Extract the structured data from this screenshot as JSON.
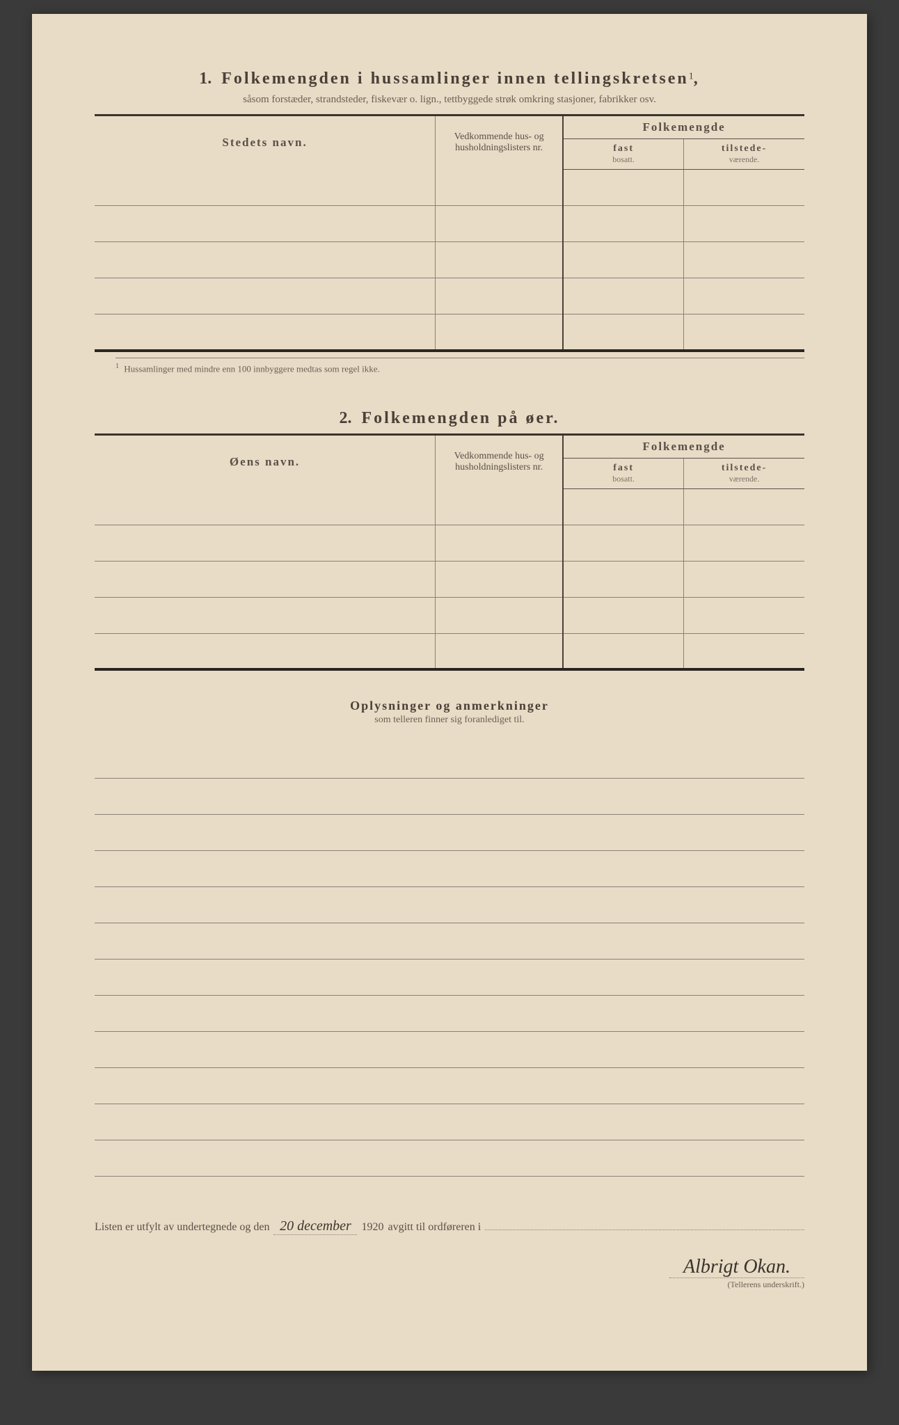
{
  "page": {
    "background_color": "#e8dcc6",
    "text_color": "#4a4038",
    "font_family": "Georgia, serif"
  },
  "section1": {
    "number": "1.",
    "title": "Folkemengden i hussamlinger innen tellingskretsen",
    "superscript": "1",
    "title_suffix": ",",
    "subtitle": "såsom forstæder, strandsteder, fiskevær o. lign., tettbyggede strøk omkring stasjoner, fabrikker osv.",
    "columns": {
      "name": "Stedets navn.",
      "lists": "Vedkommende hus- og husholdningslisters nr.",
      "folkemengde": "Folkemengde",
      "fast": "fast",
      "fast_sub": "bosatt.",
      "tilstede": "tilstede-",
      "tilstede_sub": "værende."
    },
    "rows": [
      {
        "name": "",
        "lists": "",
        "fast": "",
        "tilstede": ""
      },
      {
        "name": "",
        "lists": "",
        "fast": "",
        "tilstede": ""
      },
      {
        "name": "",
        "lists": "",
        "fast": "",
        "tilstede": ""
      },
      {
        "name": "",
        "lists": "",
        "fast": "",
        "tilstede": ""
      },
      {
        "name": "",
        "lists": "",
        "fast": "",
        "tilstede": ""
      }
    ],
    "footnote_num": "1",
    "footnote": "Hussamlinger med mindre enn 100 innbyggere medtas som regel ikke."
  },
  "section2": {
    "number": "2.",
    "title": "Folkemengden på øer.",
    "columns": {
      "name": "Øens navn.",
      "lists": "Vedkommende hus- og husholdningslisters nr.",
      "folkemengde": "Folkemengde",
      "fast": "fast",
      "fast_sub": "bosatt.",
      "tilstede": "tilstede-",
      "tilstede_sub": "værende."
    },
    "rows": [
      {
        "name": "",
        "lists": "",
        "fast": "",
        "tilstede": ""
      },
      {
        "name": "",
        "lists": "",
        "fast": "",
        "tilstede": ""
      },
      {
        "name": "",
        "lists": "",
        "fast": "",
        "tilstede": ""
      },
      {
        "name": "",
        "lists": "",
        "fast": "",
        "tilstede": ""
      },
      {
        "name": "",
        "lists": "",
        "fast": "",
        "tilstede": ""
      }
    ]
  },
  "section3": {
    "title": "Oplysninger og anmerkninger",
    "subtitle": "som telleren finner sig foranlediget til.",
    "line_count": 12
  },
  "signature": {
    "prefix": "Listen er utfylt av undertegnede og den",
    "date_handwritten": "20 december",
    "year": "1920",
    "middle": "avgitt til ordføreren i",
    "place_handwritten": "",
    "signature_handwritten": "Albrigt Okan.",
    "signature_label": "(Tellerens underskrift.)"
  }
}
